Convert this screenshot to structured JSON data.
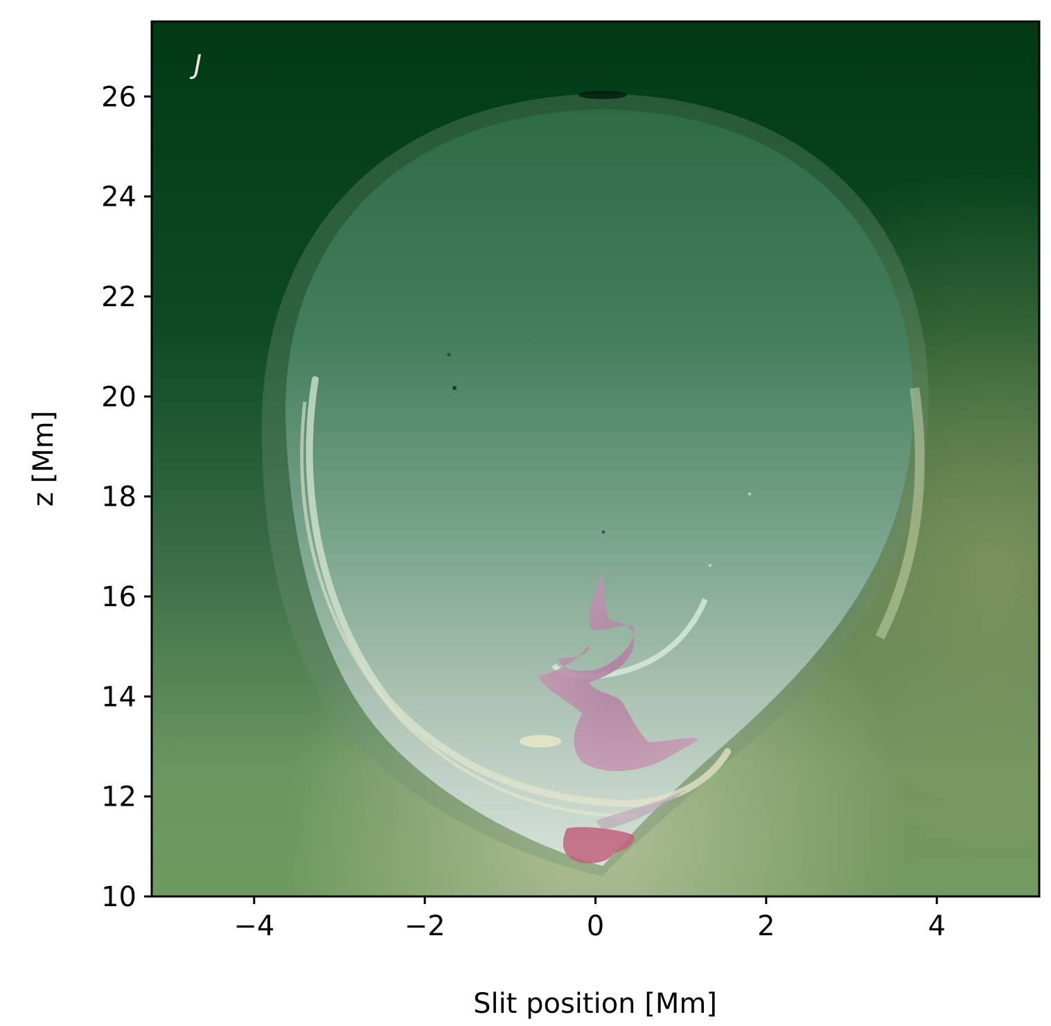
{
  "chart_data": {
    "type": "heatmap",
    "panel_label": "J",
    "xlabel": "Slit position [Mm]",
    "ylabel": "z [Mm]",
    "xlim": [
      -5.2,
      5.2
    ],
    "ylim": [
      10,
      27.5
    ],
    "x_ticks": [
      -4,
      -2,
      0,
      2,
      4
    ],
    "x_tick_labels": [
      "−4",
      "−2",
      "0",
      "2",
      "4"
    ],
    "y_ticks": [
      10,
      12,
      14,
      16,
      18,
      20,
      22,
      24,
      26
    ],
    "y_tick_labels": [
      "10",
      "12",
      "14",
      "16",
      "18",
      "20",
      "22",
      "24",
      "26"
    ],
    "grid": false,
    "colors": {
      "background_dark": "#0a3a1c",
      "background_lower": "#6f9a62",
      "bubble_top": "#2f6e4c",
      "bubble_mid": "#7ea592",
      "bubble_bottom": "#c6d8cc",
      "pink_feature": "#b07a96",
      "red_feature": "#c25c78"
    }
  }
}
